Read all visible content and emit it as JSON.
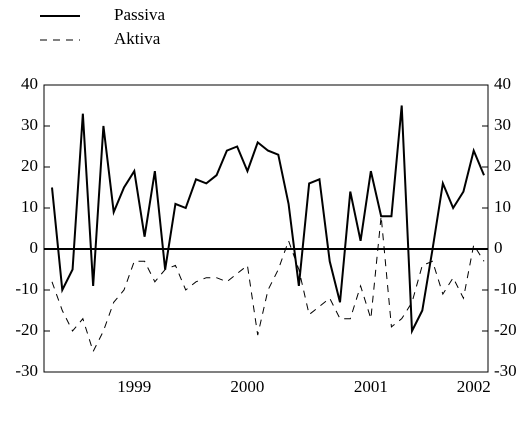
{
  "chart_data": {
    "type": "line",
    "categories": [
      null,
      null,
      null,
      null,
      null,
      null,
      null,
      null,
      "1999",
      null,
      null,
      null,
      null,
      null,
      null,
      null,
      null,
      null,
      null,
      "2000",
      null,
      null,
      null,
      null,
      null,
      null,
      null,
      null,
      null,
      null,
      null,
      "2001",
      null,
      null,
      null,
      null,
      null,
      null,
      null,
      null,
      null,
      "2002",
      null
    ],
    "series": [
      {
        "name": "Passiva",
        "color": "#000000",
        "dash": "solid",
        "values": [
          15,
          -10,
          -5,
          33,
          -9,
          30,
          9,
          15,
          19,
          3,
          19,
          -5,
          11,
          10,
          17,
          16,
          18,
          24,
          25,
          19,
          26,
          24,
          23,
          11,
          -9,
          16,
          17,
          -3,
          -13,
          14,
          2,
          19,
          8,
          8,
          35,
          -20,
          -15,
          0,
          16,
          10,
          14,
          24,
          18
        ]
      },
      {
        "name": "Aktiva",
        "color": "#000000",
        "dash": "dashed",
        "values": [
          -8,
          -15,
          -20,
          -17,
          -25,
          -20,
          -13,
          -10,
          -3,
          -3,
          -8,
          -5,
          -4,
          -10,
          -8,
          -7,
          -7,
          -8,
          -6,
          -4,
          -21,
          -10,
          -5,
          2,
          -5,
          -16,
          -14,
          -12,
          -17,
          -17,
          -9,
          -17,
          8,
          -19,
          -17,
          -13,
          -4,
          -3,
          -11,
          -7,
          -12,
          1,
          -3
        ]
      }
    ],
    "ylim": [
      -30,
      40
    ],
    "yticks": [
      -30,
      -20,
      -10,
      0,
      10,
      20,
      30,
      40
    ],
    "y2lim": [
      -30,
      40
    ],
    "y2ticks": [
      -30,
      -20,
      -10,
      0,
      10,
      20,
      30,
      40
    ],
    "legend": "top-left"
  }
}
